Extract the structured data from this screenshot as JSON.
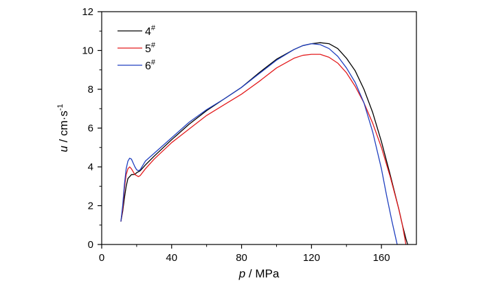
{
  "chart_data": {
    "type": "line",
    "xlabel": {
      "var": "p",
      "unit": " / MPa"
    },
    "ylabel": {
      "var": "u",
      "unit": " / cm·s",
      "sup": "-1"
    },
    "xlim": [
      0,
      180
    ],
    "ylim": [
      0,
      12
    ],
    "xticks": [
      0,
      40,
      80,
      120,
      160
    ],
    "yticks": [
      0,
      2,
      4,
      6,
      8,
      10,
      12
    ],
    "xtick_labels": [
      "0",
      "40",
      "80",
      "120",
      "160"
    ],
    "ytick_labels": [
      "0",
      "2",
      "4",
      "6",
      "8",
      "10",
      "12"
    ],
    "legend_position": "top-left",
    "series": [
      {
        "name": "4",
        "name_sup": "#",
        "color": "#000000",
        "x": [
          11,
          12,
          13,
          14,
          15,
          16,
          17,
          18,
          19,
          20,
          21,
          22,
          25,
          30,
          40,
          50,
          60,
          70,
          80,
          90,
          100,
          110,
          115,
          120,
          125,
          130,
          135,
          140,
          145,
          150,
          155,
          160,
          165,
          170,
          172,
          174,
          175
        ],
        "y": [
          1.2,
          1.7,
          2.4,
          3.0,
          3.4,
          3.5,
          3.6,
          3.6,
          3.62,
          3.7,
          3.75,
          3.8,
          4.1,
          4.55,
          5.4,
          6.2,
          6.9,
          7.5,
          8.1,
          8.85,
          9.55,
          10.05,
          10.25,
          10.35,
          10.4,
          10.35,
          10.1,
          9.6,
          8.95,
          8.0,
          6.8,
          5.3,
          3.6,
          1.8,
          1.0,
          0.3,
          0.0
        ]
      },
      {
        "name": "5",
        "name_sup": "#",
        "color": "#e31a1c",
        "x": [
          11,
          12,
          13,
          14,
          15,
          16,
          17,
          18,
          19,
          20,
          21,
          22,
          25,
          30,
          40,
          50,
          60,
          70,
          80,
          90,
          100,
          110,
          115,
          120,
          125,
          130,
          135,
          140,
          145,
          150,
          155,
          160,
          165,
          170,
          172,
          173,
          174
        ],
        "y": [
          1.2,
          1.8,
          2.9,
          3.6,
          3.9,
          4.0,
          3.9,
          3.75,
          3.6,
          3.55,
          3.5,
          3.55,
          3.9,
          4.4,
          5.25,
          5.95,
          6.65,
          7.2,
          7.75,
          8.4,
          9.1,
          9.6,
          9.75,
          9.8,
          9.8,
          9.65,
          9.35,
          8.85,
          8.15,
          7.3,
          6.25,
          5.0,
          3.5,
          1.8,
          1.0,
          0.5,
          0.0
        ]
      },
      {
        "name": "6",
        "name_sup": "#",
        "color": "#1f3fbf",
        "x": [
          11,
          12,
          13,
          14,
          15,
          16,
          17,
          18,
          19,
          20,
          21,
          22,
          25,
          30,
          40,
          50,
          60,
          70,
          80,
          90,
          100,
          110,
          115,
          120,
          125,
          130,
          135,
          140,
          145,
          150,
          155,
          160,
          163,
          166,
          168,
          169
        ],
        "y": [
          1.2,
          2.0,
          3.1,
          3.9,
          4.3,
          4.45,
          4.4,
          4.2,
          4.0,
          3.85,
          3.8,
          3.85,
          4.3,
          4.7,
          5.5,
          6.3,
          6.95,
          7.5,
          8.1,
          8.8,
          9.5,
          10.05,
          10.25,
          10.35,
          10.3,
          10.1,
          9.7,
          9.1,
          8.35,
          7.3,
          5.8,
          3.9,
          2.5,
          1.2,
          0.4,
          0.0
        ]
      }
    ]
  }
}
